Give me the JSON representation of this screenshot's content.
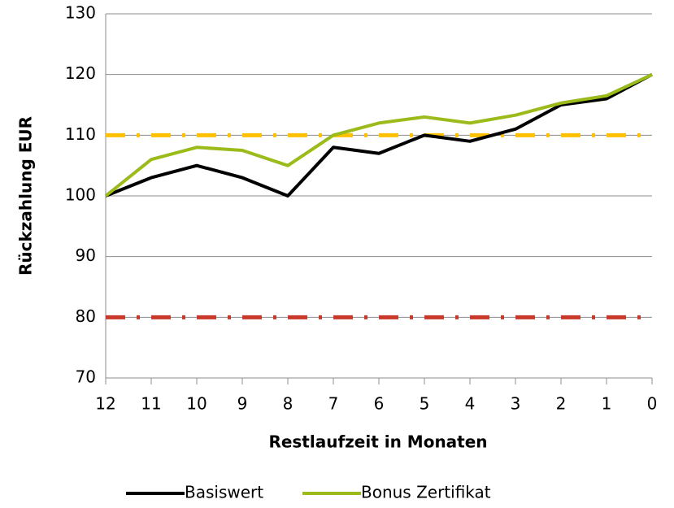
{
  "chart_data": {
    "type": "line",
    "x_label": "Restlaufzeit in Monaten",
    "y_label": "Rückzahlung EUR",
    "categories": [
      "12",
      "11",
      "10",
      "9",
      "8",
      "7",
      "6",
      "5",
      "4",
      "3",
      "2",
      "1",
      "0"
    ],
    "series": [
      {
        "name": "Basiswert",
        "color": "#000000",
        "values": [
          100,
          103,
          105,
          103,
          100,
          108,
          107,
          110,
          109,
          111,
          115,
          116,
          120
        ]
      },
      {
        "name": "Bonus Zertifikat",
        "color": "#9bbb1a",
        "values": [
          100,
          106,
          108,
          107.5,
          105,
          110,
          112,
          113,
          112,
          113.3,
          115.3,
          116.5,
          120
        ]
      }
    ],
    "reference_lines": [
      {
        "value": 110,
        "color": "#ffc000"
      },
      {
        "value": 80,
        "color": "#c8392b"
      }
    ],
    "ylim": [
      70,
      130
    ],
    "yticks": [
      70,
      80,
      90,
      100,
      110,
      120,
      130
    ],
    "grid": true,
    "legend": "bottom"
  }
}
